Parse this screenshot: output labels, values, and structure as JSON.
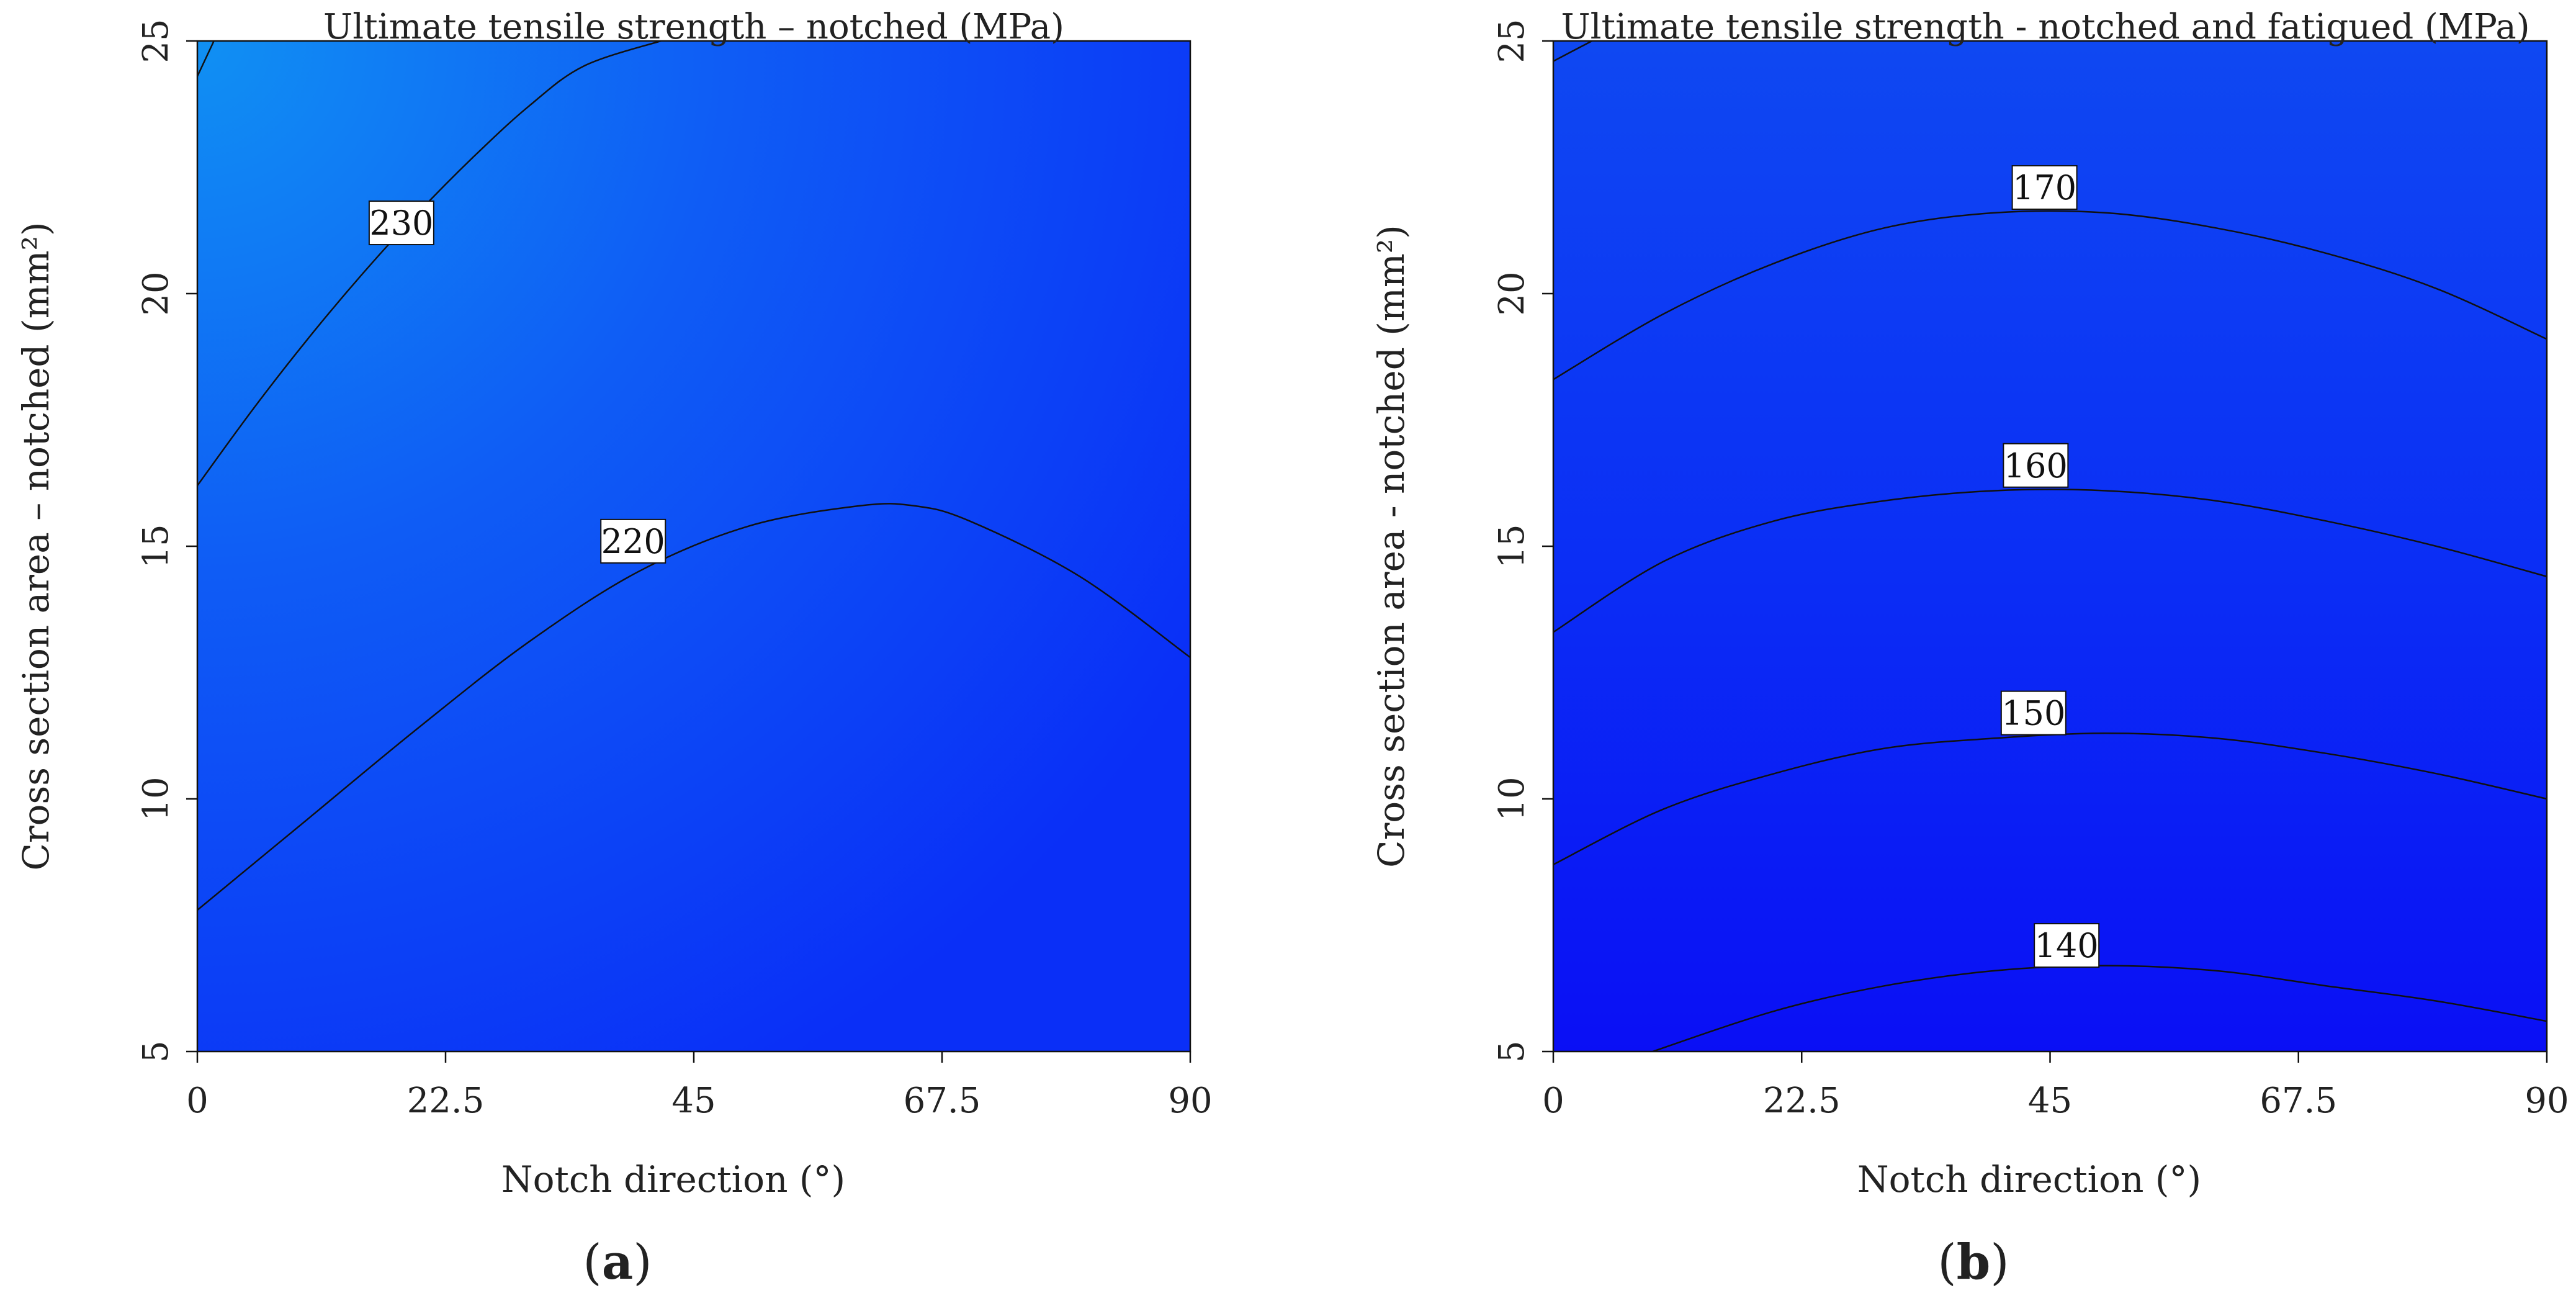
{
  "chart_data": [
    {
      "type": "heatmap",
      "panel_label": "a",
      "title": "Ultimate tensile strength –  notched (MPa)",
      "xlabel": "Notch direction (°)",
      "ylabel": "Cross section area  –  notched (mm²)",
      "xlim": [
        0,
        90
      ],
      "ylim": [
        5,
        25
      ],
      "xticks": [
        "0",
        "22.5",
        "45",
        "67.5",
        "90"
      ],
      "yticks": [
        "5",
        "10",
        "15",
        "20",
        "25"
      ],
      "grid": false,
      "colormap": [
        "#0a2ff7",
        "#0f5cf5",
        "#1090f3"
      ],
      "contours": [
        {
          "level": "230",
          "label_at": [
            18.5,
            21.4
          ],
          "points": [
            [
              0,
              16.2
            ],
            [
              5,
              17.7
            ],
            [
              10,
              19.1
            ],
            [
              15,
              20.4
            ],
            [
              20,
              21.6
            ],
            [
              25,
              22.7
            ],
            [
              30,
              23.7
            ],
            [
              35,
              24.5
            ],
            [
              42,
              25.0
            ]
          ]
        },
        {
          "level": "220",
          "label_at": [
            39.5,
            15.1
          ],
          "points": [
            [
              0,
              7.8
            ],
            [
              10,
              9.6
            ],
            [
              20,
              11.4
            ],
            [
              30,
              13.1
            ],
            [
              40,
              14.5
            ],
            [
              50,
              15.4
            ],
            [
              60,
              15.8
            ],
            [
              65,
              15.8
            ],
            [
              70,
              15.5
            ],
            [
              80,
              14.4
            ],
            [
              90,
              12.8
            ]
          ]
        },
        {
          "level": "",
          "label_at": null,
          "points": [
            [
              0,
              24.3
            ],
            [
              1.5,
              25.0
            ]
          ]
        }
      ]
    },
    {
      "type": "heatmap",
      "panel_label": "b",
      "title": "Ultimate tensile strength  -  notched and fatigued (MPa)",
      "xlabel": "Notch direction (°)",
      "ylabel": "Cross section area  -  notched (mm²)",
      "xlim": [
        0,
        90
      ],
      "ylim": [
        5,
        25
      ],
      "xticks": [
        "0",
        "22.5",
        "45",
        "67.5",
        "90"
      ],
      "yticks": [
        "5",
        "10",
        "15",
        "20",
        "25"
      ],
      "grid": false,
      "colormap": [
        "#0a0ff5",
        "#0b2ff5",
        "#0f48f2"
      ],
      "contours": [
        {
          "level": "170",
          "label_at": [
            44.5,
            22.1
          ],
          "points": [
            [
              0,
              18.3
            ],
            [
              10,
              19.6
            ],
            [
              20,
              20.6
            ],
            [
              30,
              21.3
            ],
            [
              40,
              21.6
            ],
            [
              50,
              21.6
            ],
            [
              60,
              21.3
            ],
            [
              70,
              20.8
            ],
            [
              80,
              20.1
            ],
            [
              90,
              19.1
            ]
          ]
        },
        {
          "level": "160",
          "label_at": [
            43.7,
            16.6
          ],
          "points": [
            [
              0,
              13.3
            ],
            [
              10,
              14.7
            ],
            [
              20,
              15.5
            ],
            [
              30,
              15.9
            ],
            [
              40,
              16.1
            ],
            [
              50,
              16.1
            ],
            [
              60,
              15.9
            ],
            [
              70,
              15.5
            ],
            [
              80,
              15.0
            ],
            [
              90,
              14.4
            ]
          ]
        },
        {
          "level": "150",
          "label_at": [
            43.5,
            11.7
          ],
          "points": [
            [
              0,
              8.7
            ],
            [
              10,
              9.8
            ],
            [
              20,
              10.5
            ],
            [
              30,
              11.0
            ],
            [
              40,
              11.2
            ],
            [
              50,
              11.3
            ],
            [
              60,
              11.2
            ],
            [
              70,
              10.9
            ],
            [
              80,
              10.5
            ],
            [
              90,
              10.0
            ]
          ]
        },
        {
          "level": "140",
          "label_at": [
            46.5,
            7.1
          ],
          "points": [
            [
              9,
              5.0
            ],
            [
              20,
              5.8
            ],
            [
              30,
              6.3
            ],
            [
              40,
              6.6
            ],
            [
              50,
              6.7
            ],
            [
              60,
              6.6
            ],
            [
              70,
              6.3
            ],
            [
              80,
              6.0
            ],
            [
              90,
              5.6
            ]
          ]
        },
        {
          "level": "",
          "label_at": null,
          "points": [
            [
              0,
              24.6
            ],
            [
              3.5,
              25.0
            ]
          ]
        }
      ]
    }
  ]
}
